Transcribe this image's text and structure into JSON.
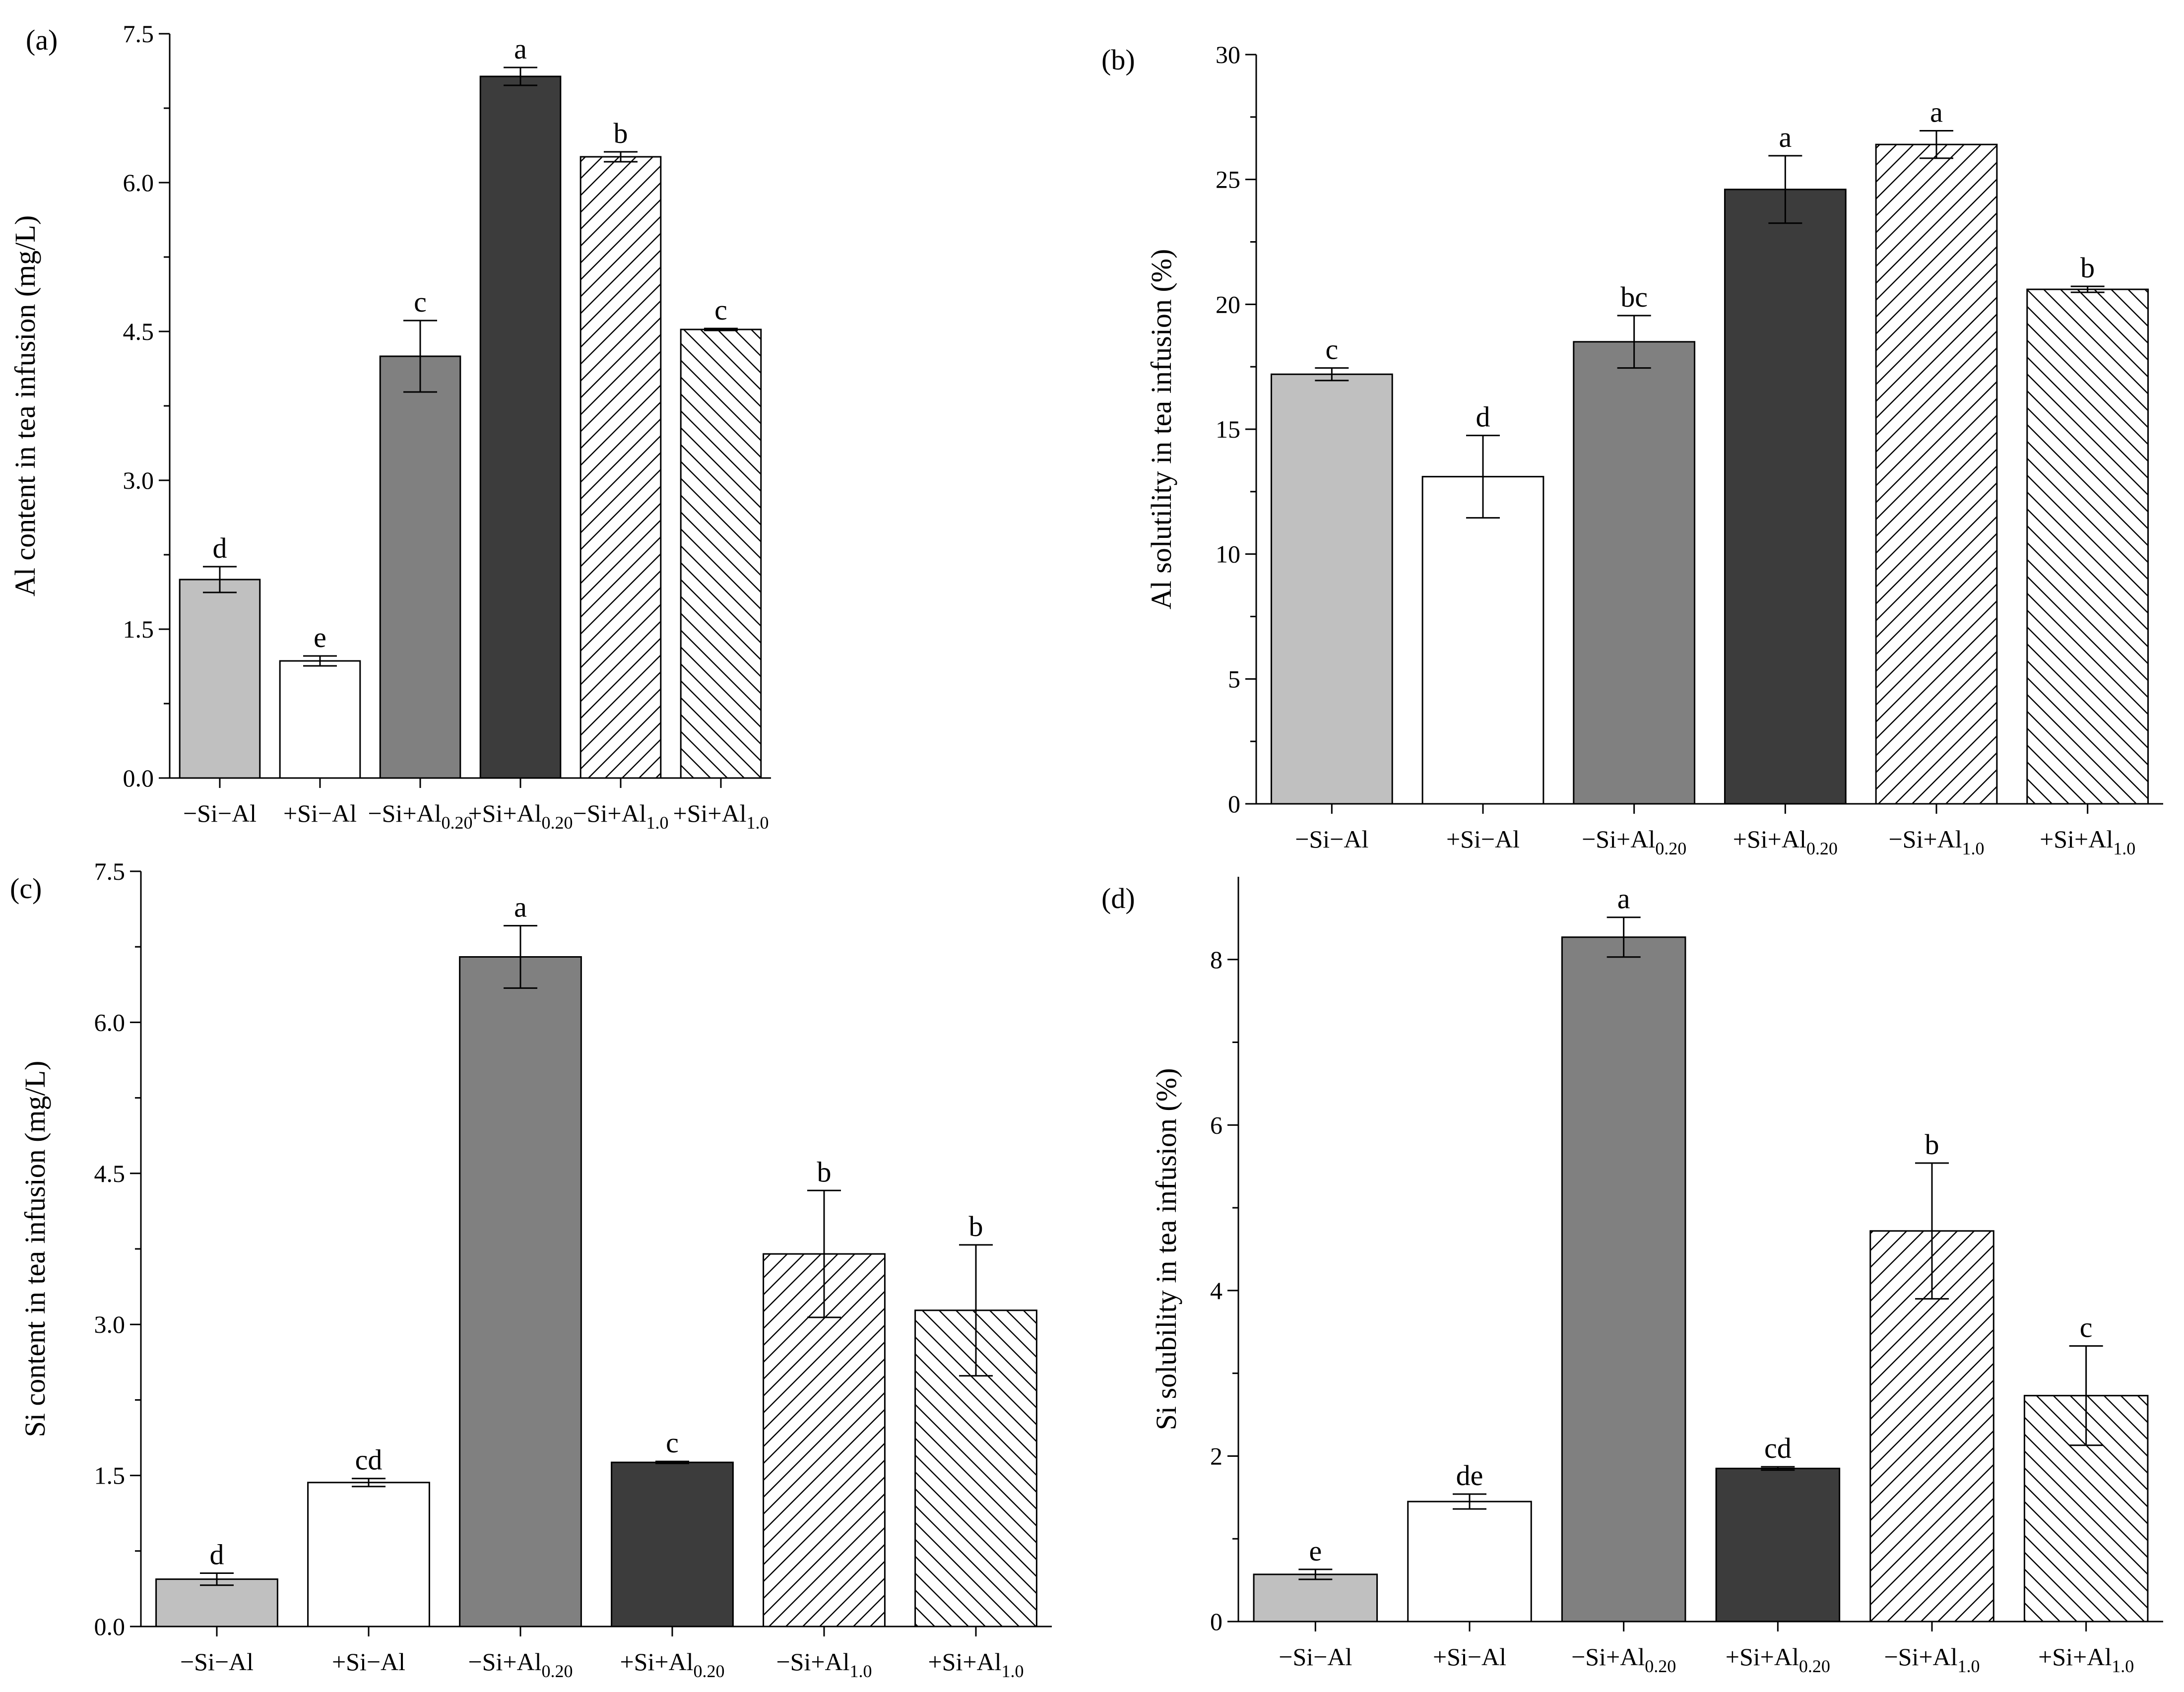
{
  "figure": {
    "background": "#ffffff",
    "bar_colors": [
      "#c0c0c0",
      "#ffffff",
      "#808080",
      "#3c3c3c",
      "#ffffff",
      "#ffffff"
    ],
    "bar_hatch": [
      "none",
      "none",
      "none",
      "none",
      "forward-diagonal",
      "backward-diagonal"
    ],
    "categories": [
      {
        "base": "−Si−Al",
        "sub": ""
      },
      {
        "base": "+Si−Al",
        "sub": ""
      },
      {
        "base": "−Si+Al",
        "sub": "0.20"
      },
      {
        "base": "+Si+Al",
        "sub": "0.20"
      },
      {
        "base": "−Si+Al",
        "sub": "1.0"
      },
      {
        "base": "+Si+Al",
        "sub": "1.0"
      }
    ]
  },
  "chart_data": [
    {
      "type": "bar",
      "panel": "(a)",
      "ylabel": "Al content in tea infusion (mg/L)",
      "ylim": [
        0,
        7.5
      ],
      "yticks": [
        "0.0",
        "1.5",
        "3.0",
        "4.5",
        "6.0",
        "7.5"
      ],
      "values": [
        2.0,
        1.18,
        4.25,
        7.07,
        6.26,
        4.52
      ],
      "errors": [
        0.13,
        0.05,
        0.36,
        0.09,
        0.05,
        0.01
      ],
      "letters": [
        "d",
        "e",
        "c",
        "a",
        "b",
        "c"
      ],
      "grid": false,
      "legend": "none"
    },
    {
      "type": "bar",
      "panel": "(b)",
      "ylabel": "Al solutility in tea infusion (%)",
      "ylim": [
        0,
        30
      ],
      "yticks": [
        "0",
        "5",
        "10",
        "15",
        "20",
        "25",
        "30"
      ],
      "values": [
        17.2,
        13.1,
        18.5,
        24.6,
        26.4,
        20.6
      ],
      "errors": [
        0.25,
        1.65,
        1.05,
        1.35,
        0.55,
        0.12
      ],
      "letters": [
        "c",
        "d",
        "bc",
        "a",
        "a",
        "b"
      ],
      "grid": false,
      "legend": "none"
    },
    {
      "type": "bar",
      "panel": "(c)",
      "ylabel": "Si content in tea infusion (mg/L)",
      "ylim": [
        0,
        7.5
      ],
      "yticks": [
        "0.0",
        "1.5",
        "3.0",
        "4.5",
        "6.0",
        "7.5"
      ],
      "values": [
        0.47,
        1.43,
        6.65,
        1.63,
        3.7,
        3.14
      ],
      "errors": [
        0.06,
        0.04,
        0.31,
        0.01,
        0.63,
        0.65
      ],
      "letters": [
        "d",
        "cd",
        "a",
        "c",
        "b",
        "b"
      ],
      "grid": false,
      "legend": "none"
    },
    {
      "type": "bar",
      "panel": "(d)",
      "ylabel": "Si solubility in tea infusion (%)",
      "ylim": [
        0,
        9
      ],
      "yticks": [
        "0",
        "2",
        "4",
        "6",
        "8"
      ],
      "values": [
        0.57,
        1.45,
        8.27,
        1.85,
        4.72,
        2.73
      ],
      "errors": [
        0.06,
        0.09,
        0.24,
        0.02,
        0.82,
        0.6
      ],
      "letters": [
        "e",
        "de",
        "a",
        "cd",
        "b",
        "c"
      ],
      "grid": false,
      "legend": "none"
    }
  ]
}
